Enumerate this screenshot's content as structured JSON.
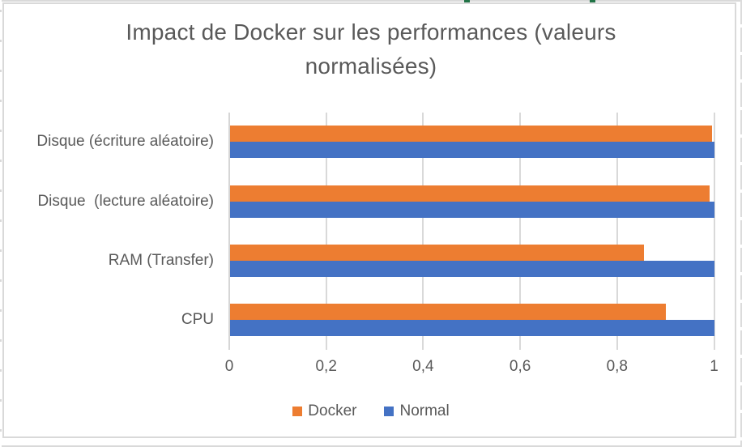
{
  "chart_data": {
    "type": "bar",
    "orientation": "horizontal",
    "title": "Impact de Docker sur les performances (valeurs normalisées)",
    "categories": [
      "Disque (écriture aléatoire)",
      "Disque  (lecture aléatoire)",
      "RAM (Transfer)",
      "CPU"
    ],
    "series": [
      {
        "name": "Docker",
        "color": "#ED7D31",
        "values": [
          0.995,
          0.99,
          0.855,
          0.9
        ]
      },
      {
        "name": "Normal",
        "color": "#4472C4",
        "values": [
          1.0,
          1.0,
          1.0,
          1.0
        ]
      }
    ],
    "x_axis": {
      "min": 0,
      "max": 1,
      "tick_values": [
        0,
        0.2,
        0.4,
        0.6,
        0.8,
        1
      ],
      "tick_labels": [
        "0",
        "0,2",
        "0,4",
        "0,6",
        "0,8",
        "1"
      ],
      "number_format": "french-decimal-comma"
    },
    "y_axis_order_top_to_bottom": true,
    "legend": {
      "position": "bottom",
      "entries": [
        "Docker",
        "Normal"
      ]
    },
    "grid": true,
    "colors": {
      "text": "#595959",
      "gridline": "#D9D9D9",
      "axis_line": "#D6D6D6",
      "chart_border": "#D9D9D9",
      "cell_marker_green": "#217346"
    }
  }
}
